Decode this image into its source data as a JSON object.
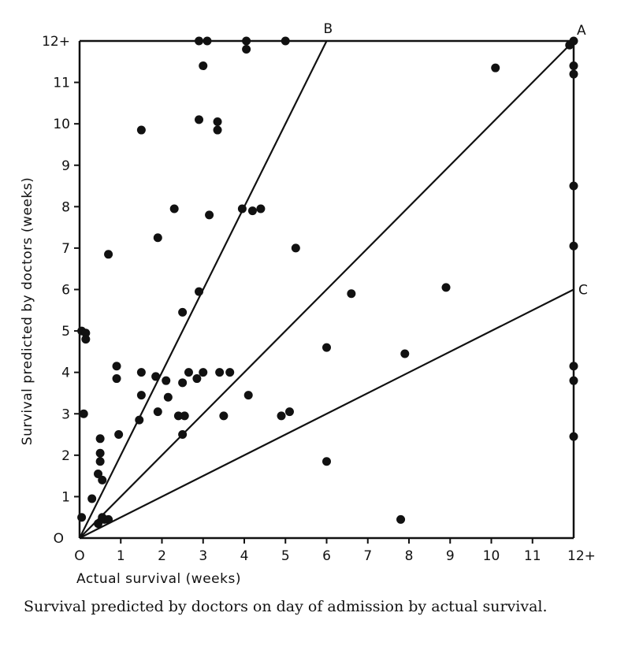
{
  "chart_data": {
    "type": "scatter",
    "title": "",
    "xlabel": "Actual survival (weeks)",
    "ylabel": "Survival predicted by doctors (weeks)",
    "xlim": [
      0,
      12
    ],
    "ylim": [
      0,
      12
    ],
    "x_ticks": [
      "O",
      "1",
      "2",
      "3",
      "4",
      "5",
      "6",
      "7",
      "8",
      "9",
      "10",
      "11",
      "12+"
    ],
    "y_ticks": [
      "O",
      "1",
      "2",
      "3",
      "4",
      "5",
      "6",
      "7",
      "8",
      "9",
      "10",
      "11",
      "12+"
    ],
    "grid": false,
    "legend": "none",
    "lines": [
      {
        "label": "A",
        "from": [
          0,
          0
        ],
        "to": [
          12,
          12
        ]
      },
      {
        "label": "B",
        "from": [
          0,
          0
        ],
        "to": [
          6,
          12
        ]
      },
      {
        "label": "C",
        "from": [
          0,
          0
        ],
        "to": [
          12,
          6
        ]
      }
    ],
    "points": [
      [
        2.9,
        12
      ],
      [
        3.1,
        12
      ],
      [
        4.05,
        12
      ],
      [
        5.0,
        12
      ],
      [
        4.05,
        11.8
      ],
      [
        3.0,
        11.4
      ],
      [
        10.1,
        11.35
      ],
      [
        11.9,
        11.9
      ],
      [
        12.0,
        12.0
      ],
      [
        12.0,
        11.4
      ],
      [
        12.0,
        11.2
      ],
      [
        2.9,
        10.1
      ],
      [
        3.35,
        10.05
      ],
      [
        3.35,
        9.85
      ],
      [
        1.5,
        9.85
      ],
      [
        12.0,
        8.5
      ],
      [
        2.3,
        7.95
      ],
      [
        3.15,
        7.8
      ],
      [
        3.95,
        7.95
      ],
      [
        4.2,
        7.9
      ],
      [
        4.4,
        7.95
      ],
      [
        1.9,
        7.25
      ],
      [
        0.7,
        6.85
      ],
      [
        5.25,
        7.0
      ],
      [
        12.0,
        7.05
      ],
      [
        2.9,
        5.95
      ],
      [
        6.6,
        5.9
      ],
      [
        8.9,
        6.05
      ],
      [
        2.5,
        5.45
      ],
      [
        0.05,
        5.0
      ],
      [
        0.15,
        4.95
      ],
      [
        0.15,
        4.8
      ],
      [
        6.0,
        4.6
      ],
      [
        7.9,
        4.45
      ],
      [
        0.9,
        4.15
      ],
      [
        0.9,
        3.85
      ],
      [
        1.5,
        4.0
      ],
      [
        1.85,
        3.9
      ],
      [
        2.1,
        3.8
      ],
      [
        2.5,
        3.75
      ],
      [
        2.65,
        4.0
      ],
      [
        2.85,
        3.85
      ],
      [
        3.0,
        4.0
      ],
      [
        3.4,
        4.0
      ],
      [
        3.65,
        4.0
      ],
      [
        12.0,
        4.15
      ],
      [
        12.0,
        3.8
      ],
      [
        1.5,
        3.45
      ],
      [
        2.15,
        3.4
      ],
      [
        4.1,
        3.45
      ],
      [
        0.1,
        3.0
      ],
      [
        1.9,
        3.05
      ],
      [
        2.4,
        2.95
      ],
      [
        2.55,
        2.95
      ],
      [
        3.5,
        2.95
      ],
      [
        4.9,
        2.95
      ],
      [
        5.1,
        3.05
      ],
      [
        1.45,
        2.85
      ],
      [
        0.95,
        2.5
      ],
      [
        2.5,
        2.5
      ],
      [
        0.5,
        2.4
      ],
      [
        12.0,
        2.45
      ],
      [
        0.5,
        2.05
      ],
      [
        0.5,
        1.85
      ],
      [
        6.0,
        1.85
      ],
      [
        0.45,
        1.55
      ],
      [
        0.55,
        1.4
      ],
      [
        0.3,
        0.95
      ],
      [
        0.05,
        0.5
      ],
      [
        0.55,
        0.5
      ],
      [
        0.6,
        0.45
      ],
      [
        0.7,
        0.45
      ],
      [
        0.45,
        0.35
      ],
      [
        7.8,
        0.45
      ]
    ]
  },
  "caption": "Survival predicted by doctors on day of admission by actual survival."
}
